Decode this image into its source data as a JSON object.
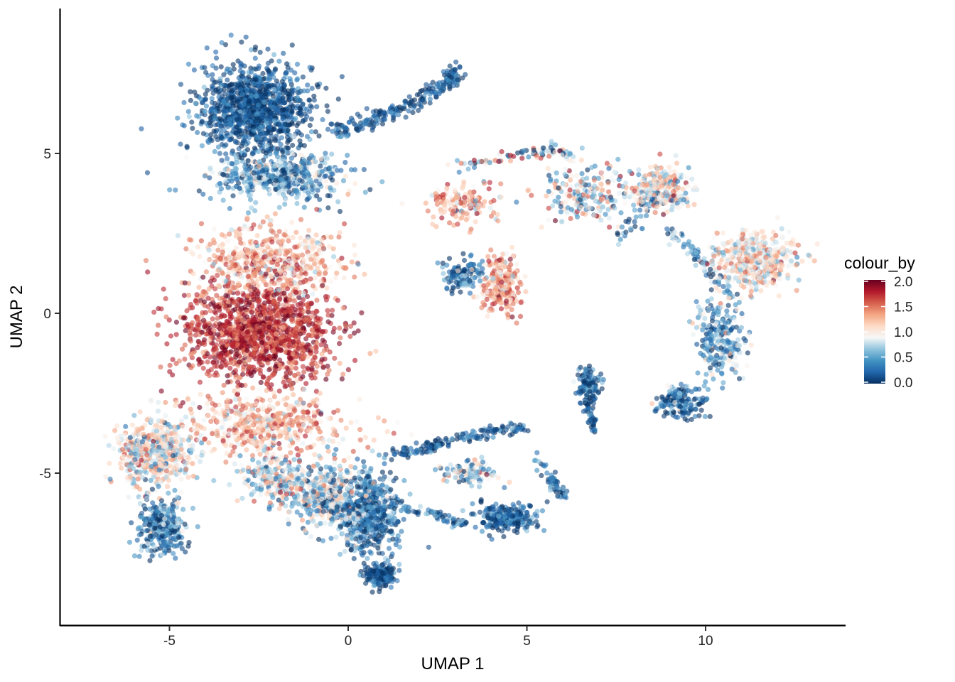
{
  "chart_data": {
    "type": "scatter",
    "title": "",
    "xlabel": "UMAP 1",
    "ylabel": "UMAP 2",
    "xlim": [
      -8.1,
      13.9
    ],
    "ylim": [
      -9.6,
      9.5
    ],
    "x_ticks": [
      -5,
      0,
      5,
      10
    ],
    "x_tick_labels": [
      "-5",
      "0",
      "5",
      "10"
    ],
    "y_ticks": [
      -5,
      0,
      5
    ],
    "y_tick_labels": [
      "-5",
      "0",
      "5"
    ],
    "grid": false,
    "legend": {
      "title": "colour_by",
      "placement": "right",
      "type": "continuous",
      "range": [
        0,
        2
      ],
      "breaks": [
        0.0,
        0.5,
        1.0,
        1.5,
        2.0
      ],
      "break_labels": [
        "0.0",
        "0.5",
        "1.0",
        "1.5",
        "2.0"
      ],
      "palette": [
        "#053061",
        "#2166ac",
        "#4393c3",
        "#92c5de",
        "#f7f7f7",
        "#fddbc7",
        "#f4a582",
        "#d6604d",
        "#b2182b",
        "#67001f"
      ]
    },
    "point_opacity": 0.6,
    "clusters": [
      {
        "name": "",
        "cx": -2.6,
        "cy": 6.4,
        "sx": 1.4,
        "sy": 1.3,
        "n": 1100,
        "v": 0.15,
        "vs": 0.2
      },
      {
        "name": "",
        "cx": -2.0,
        "cy": 4.3,
        "sx": 1.7,
        "sy": 0.8,
        "n": 500,
        "v": 0.45,
        "vs": 0.35
      },
      {
        "name": "",
        "cx": -2.2,
        "cy": 1.6,
        "sx": 1.9,
        "sy": 1.0,
        "n": 550,
        "v": 1.25,
        "vs": 0.3
      },
      {
        "name": "",
        "cx": -2.5,
        "cy": -0.6,
        "sx": 1.9,
        "sy": 1.4,
        "n": 1300,
        "v": 1.72,
        "vs": 0.22
      },
      {
        "name": "",
        "cx": -2.3,
        "cy": -3.5,
        "sx": 2.1,
        "sy": 0.9,
        "n": 500,
        "v": 1.2,
        "vs": 0.3
      },
      {
        "name": "",
        "cx": -5.4,
        "cy": -4.4,
        "sx": 1.0,
        "sy": 1.0,
        "n": 500,
        "v": 0.95,
        "vs": 0.35
      },
      {
        "name": "",
        "cx": -5.2,
        "cy": -6.7,
        "sx": 0.6,
        "sy": 0.8,
        "n": 300,
        "v": 0.35,
        "vs": 0.3
      },
      {
        "name": "",
        "cx": -2.0,
        "cy": -5.2,
        "sx": 0.9,
        "sy": 0.6,
        "n": 250,
        "v": 0.85,
        "vs": 0.4
      },
      {
        "name": "",
        "cx": -0.6,
        "cy": -5.8,
        "sx": 1.0,
        "sy": 0.9,
        "n": 450,
        "v": 0.7,
        "vs": 0.45
      },
      {
        "name": "",
        "cx": 0.6,
        "cy": -6.3,
        "sx": 0.8,
        "sy": 1.2,
        "n": 500,
        "v": 0.25,
        "vs": 0.3
      },
      {
        "name": "",
        "cx": 0.9,
        "cy": -8.2,
        "sx": 0.4,
        "sy": 0.35,
        "n": 150,
        "v": 0.15,
        "vs": 0.2
      },
      {
        "name": "",
        "cx": 4.4,
        "cy": -6.4,
        "sx": 0.8,
        "sy": 0.4,
        "n": 250,
        "v": 0.2,
        "vs": 0.2
      },
      {
        "name": "",
        "cx": 3.4,
        "cy": -5.0,
        "sx": 0.7,
        "sy": 0.35,
        "n": 100,
        "v": 0.7,
        "vs": 0.4
      },
      {
        "name": "",
        "cx": 6.7,
        "cy": -2.3,
        "sx": 0.3,
        "sy": 0.5,
        "n": 120,
        "v": 0.2,
        "vs": 0.25
      },
      {
        "name": "",
        "cx": 3.2,
        "cy": 1.2,
        "sx": 0.55,
        "sy": 0.4,
        "n": 150,
        "v": 0.35,
        "vs": 0.3
      },
      {
        "name": "",
        "cx": 4.3,
        "cy": 0.9,
        "sx": 0.45,
        "sy": 0.9,
        "n": 250,
        "v": 1.35,
        "vs": 0.3
      },
      {
        "name": "",
        "cx": 3.1,
        "cy": 3.4,
        "sx": 0.9,
        "sy": 0.5,
        "n": 160,
        "v": 1.25,
        "vs": 0.35
      },
      {
        "name": "",
        "cx": 6.6,
        "cy": 3.7,
        "sx": 1.2,
        "sy": 0.8,
        "n": 200,
        "v": 0.9,
        "vs": 0.5
      },
      {
        "name": "",
        "cx": 8.7,
        "cy": 3.9,
        "sx": 0.8,
        "sy": 0.6,
        "n": 250,
        "v": 0.95,
        "vs": 0.35
      },
      {
        "name": "",
        "cx": 11.4,
        "cy": 1.6,
        "sx": 1.0,
        "sy": 0.8,
        "n": 450,
        "v": 1.05,
        "vs": 0.3
      },
      {
        "name": "",
        "cx": 10.4,
        "cy": -0.8,
        "sx": 0.6,
        "sy": 1.1,
        "n": 250,
        "v": 0.5,
        "vs": 0.35
      },
      {
        "name": "",
        "cx": 9.3,
        "cy": -2.8,
        "sx": 0.6,
        "sy": 0.45,
        "n": 180,
        "v": 0.25,
        "vs": 0.3
      }
    ],
    "trails": [
      {
        "name": "",
        "x": [
          -0.5,
          0.5,
          1.5,
          2.2,
          2.8,
          3.0
        ],
        "y": [
          5.6,
          6.0,
          6.4,
          6.8,
          7.3,
          7.6
        ],
        "n": 230,
        "spread": 0.22,
        "v": 0.15,
        "vs": 0.2
      },
      {
        "name": "",
        "x": [
          3.0,
          4.0,
          5.0,
          5.8,
          6.3
        ],
        "y": [
          4.6,
          4.8,
          5.0,
          5.1,
          4.8
        ],
        "n": 90,
        "spread": 0.16,
        "v": 0.7,
        "vs": 0.6
      },
      {
        "name": "",
        "x": [
          1.0,
          2.2,
          3.2,
          4.2,
          5.0
        ],
        "y": [
          -4.5,
          -4.2,
          -3.9,
          -3.7,
          -3.6
        ],
        "n": 160,
        "spread": 0.16,
        "v": 0.2,
        "vs": 0.25
      },
      {
        "name": "",
        "x": [
          1.5,
          2.5,
          3.3
        ],
        "y": [
          -6.1,
          -6.3,
          -6.6
        ],
        "n": 60,
        "spread": 0.14,
        "v": 0.25,
        "vs": 0.3
      },
      {
        "name": "",
        "x": [
          5.3,
          5.7,
          6.0
        ],
        "y": [
          -4.6,
          -5.2,
          -5.8
        ],
        "n": 55,
        "spread": 0.14,
        "v": 0.25,
        "vs": 0.3
      },
      {
        "name": "",
        "x": [
          6.6,
          6.8,
          6.9
        ],
        "y": [
          -2.7,
          -3.2,
          -3.7
        ],
        "n": 40,
        "spread": 0.1,
        "v": 0.15,
        "vs": 0.2
      },
      {
        "name": "",
        "x": [
          9.0,
          9.6,
          10.2,
          10.8
        ],
        "y": [
          2.6,
          2.0,
          1.2,
          0.3
        ],
        "n": 90,
        "spread": 0.2,
        "v": 0.45,
        "vs": 0.35
      },
      {
        "name": "",
        "x": [
          7.6,
          8.0,
          8.3,
          8.6
        ],
        "y": [
          2.3,
          2.8,
          3.3,
          3.6
        ],
        "n": 50,
        "spread": 0.18,
        "v": 0.4,
        "vs": 0.35
      }
    ]
  }
}
